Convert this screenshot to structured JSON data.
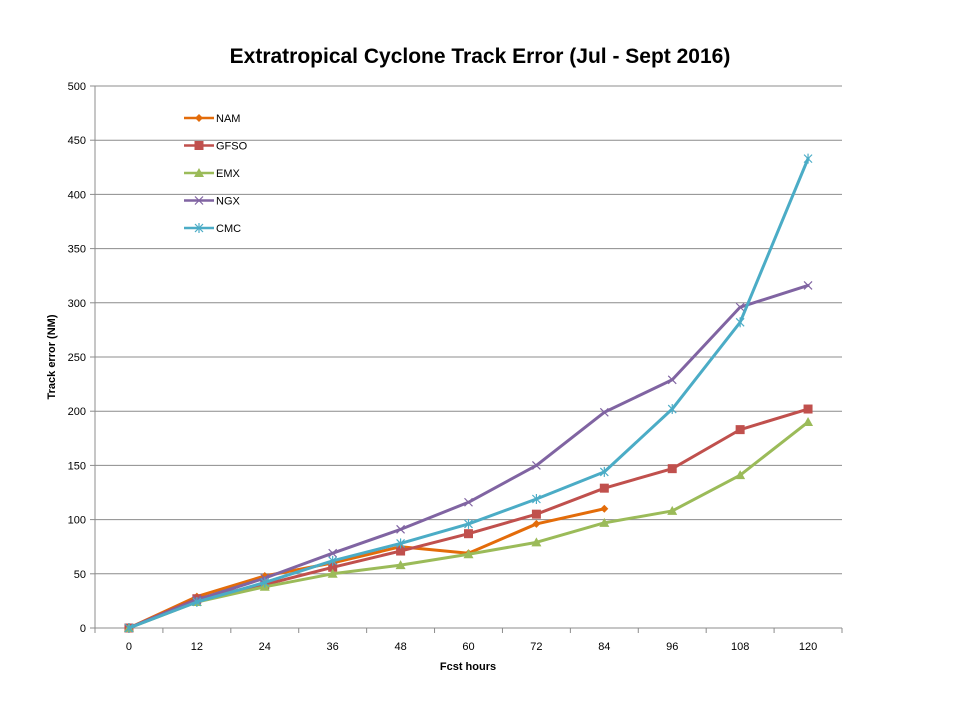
{
  "chart_data": {
    "type": "line",
    "title": "Extratropical Cyclone Track Error (Jul - Sept 2016)",
    "xlabel": "Fcst hours",
    "ylabel": "Track error  (NM)",
    "categories": [
      "0",
      "12",
      "24",
      "36",
      "48",
      "60",
      "72",
      "84",
      "96",
      "108",
      "120"
    ],
    "ylim": [
      0,
      500
    ],
    "yticks": [
      0,
      50,
      100,
      150,
      200,
      250,
      300,
      350,
      400,
      450,
      500
    ],
    "grid": true,
    "legend_position": "top-left",
    "series": [
      {
        "name": "NAM",
        "color": "#E36C0A",
        "marker": "diamond",
        "values": [
          0,
          29,
          48,
          60,
          75,
          69,
          96,
          110,
          null,
          null,
          null
        ]
      },
      {
        "name": "GFSO",
        "color": "#C0504D",
        "marker": "square",
        "values": [
          0,
          27,
          40,
          56,
          71,
          87,
          105,
          129,
          147,
          183,
          202
        ]
      },
      {
        "name": "EMX",
        "color": "#9BBB59",
        "marker": "triangle",
        "values": [
          0,
          24,
          38,
          50,
          58,
          68,
          79,
          97,
          108,
          141,
          190
        ]
      },
      {
        "name": "NGX",
        "color": "#8064A2",
        "marker": "x",
        "values": [
          0,
          26,
          46,
          69,
          91,
          116,
          150,
          199,
          229,
          296,
          316
        ]
      },
      {
        "name": "CMC",
        "color": "#4BACC6",
        "marker": "star",
        "values": [
          0,
          24,
          42,
          62,
          78,
          96,
          119,
          144,
          202,
          282,
          433
        ]
      }
    ]
  }
}
